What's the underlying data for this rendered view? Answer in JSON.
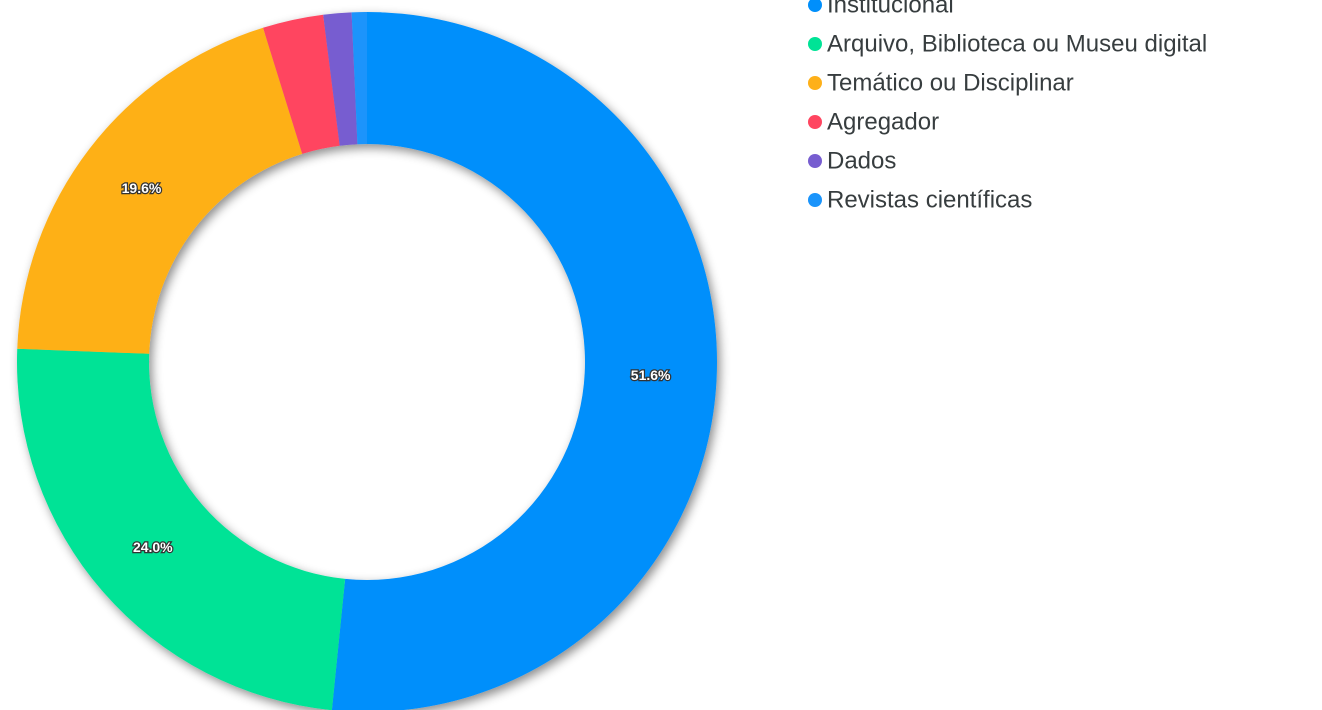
{
  "chart_data": {
    "type": "donut",
    "categories": [
      "Institucional",
      "Arquivo, Biblioteca ou Museu digital",
      "Temático ou Disciplinar",
      "Agregador",
      "Dados",
      "Revistas científicas"
    ],
    "values": [
      51.6,
      24.0,
      19.6,
      2.8,
      1.3,
      0.7
    ],
    "value_labels": [
      "51.6%",
      "24.0%",
      "19.6%",
      null,
      null,
      null
    ],
    "colors": [
      "#008ffb",
      "#00e396",
      "#feb019",
      "#ff4560",
      "#775dd0",
      "#1a94fb"
    ],
    "legend": "right"
  }
}
